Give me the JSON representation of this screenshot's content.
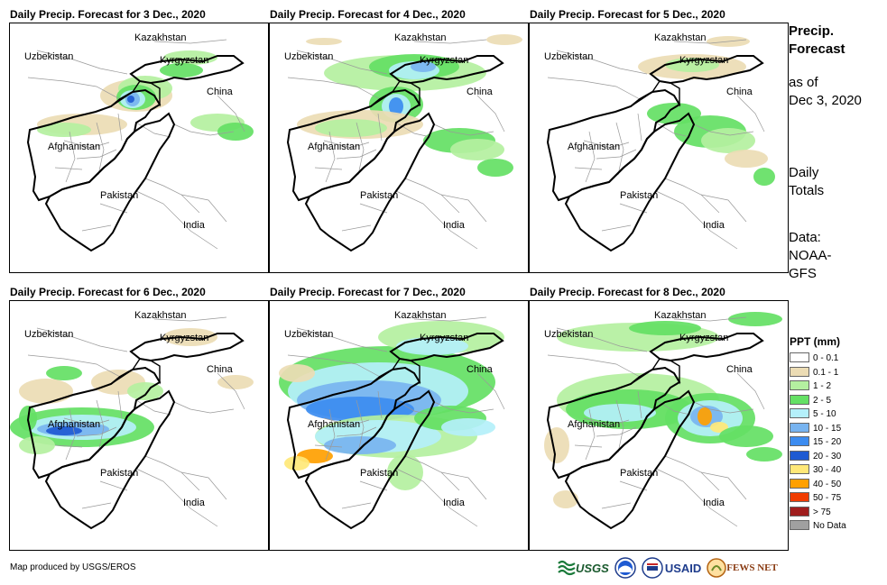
{
  "panels": [
    {
      "title": "Daily Precip. Forecast for 3 Dec., 2020",
      "pattern": "p1"
    },
    {
      "title": "Daily Precip. Forecast for 4 Dec., 2020",
      "pattern": "p2"
    },
    {
      "title": "Daily Precip. Forecast for 5 Dec., 2020",
      "pattern": "p3"
    },
    {
      "title": "Daily Precip. Forecast for 6 Dec., 2020",
      "pattern": "p4"
    },
    {
      "title": "Daily Precip. Forecast for 7 Dec., 2020",
      "pattern": "p5"
    },
    {
      "title": "Daily Precip. Forecast for 8 Dec., 2020",
      "pattern": "p6"
    }
  ],
  "labels": {
    "kazakhstan": "Kazakhstan",
    "uzbekistan": "Uzbekistan",
    "kyrgyzstan": "Kyrgyzstan",
    "china": "China",
    "afghanistan": "Afghanistan",
    "pakistan": "Pakistan",
    "india": "India"
  },
  "sidebar": {
    "title_line1": "Precip.",
    "title_line2": "Forecast",
    "asof_line1": "as of",
    "asof_line2": "Dec 3, 2020",
    "totals_line1": "Daily",
    "totals_line2": "Totals",
    "data_line1": "Data:",
    "data_line2": "NOAA-",
    "data_line3": "GFS"
  },
  "legend": {
    "title": "PPT (mm)",
    "items": [
      {
        "label": "0 - 0.1",
        "color": "#ffffff"
      },
      {
        "label": "0.1 - 1",
        "color": "#ecdcb4"
      },
      {
        "label": "1 - 2",
        "color": "#b4f0a0"
      },
      {
        "label": "2 - 5",
        "color": "#64e064"
      },
      {
        "label": "5 - 10",
        "color": "#b4f0fa"
      },
      {
        "label": "10 - 15",
        "color": "#78b4f0"
      },
      {
        "label": "15 - 20",
        "color": "#3c8cf0"
      },
      {
        "label": "20 - 30",
        "color": "#1e5ad2"
      },
      {
        "label": "30 - 40",
        "color": "#ffe878"
      },
      {
        "label": "40 - 50",
        "color": "#ffa000"
      },
      {
        "label": "50 - 75",
        "color": "#f03c00"
      },
      {
        "label": "> 75",
        "color": "#a01e1e"
      },
      {
        "label": "No Data",
        "color": "#a0a0a0"
      }
    ]
  },
  "footer": {
    "credit": "Map produced by USGS/EROS",
    "logos": [
      "USGS",
      "NOAA",
      "USAID",
      "FEWS NET"
    ]
  }
}
